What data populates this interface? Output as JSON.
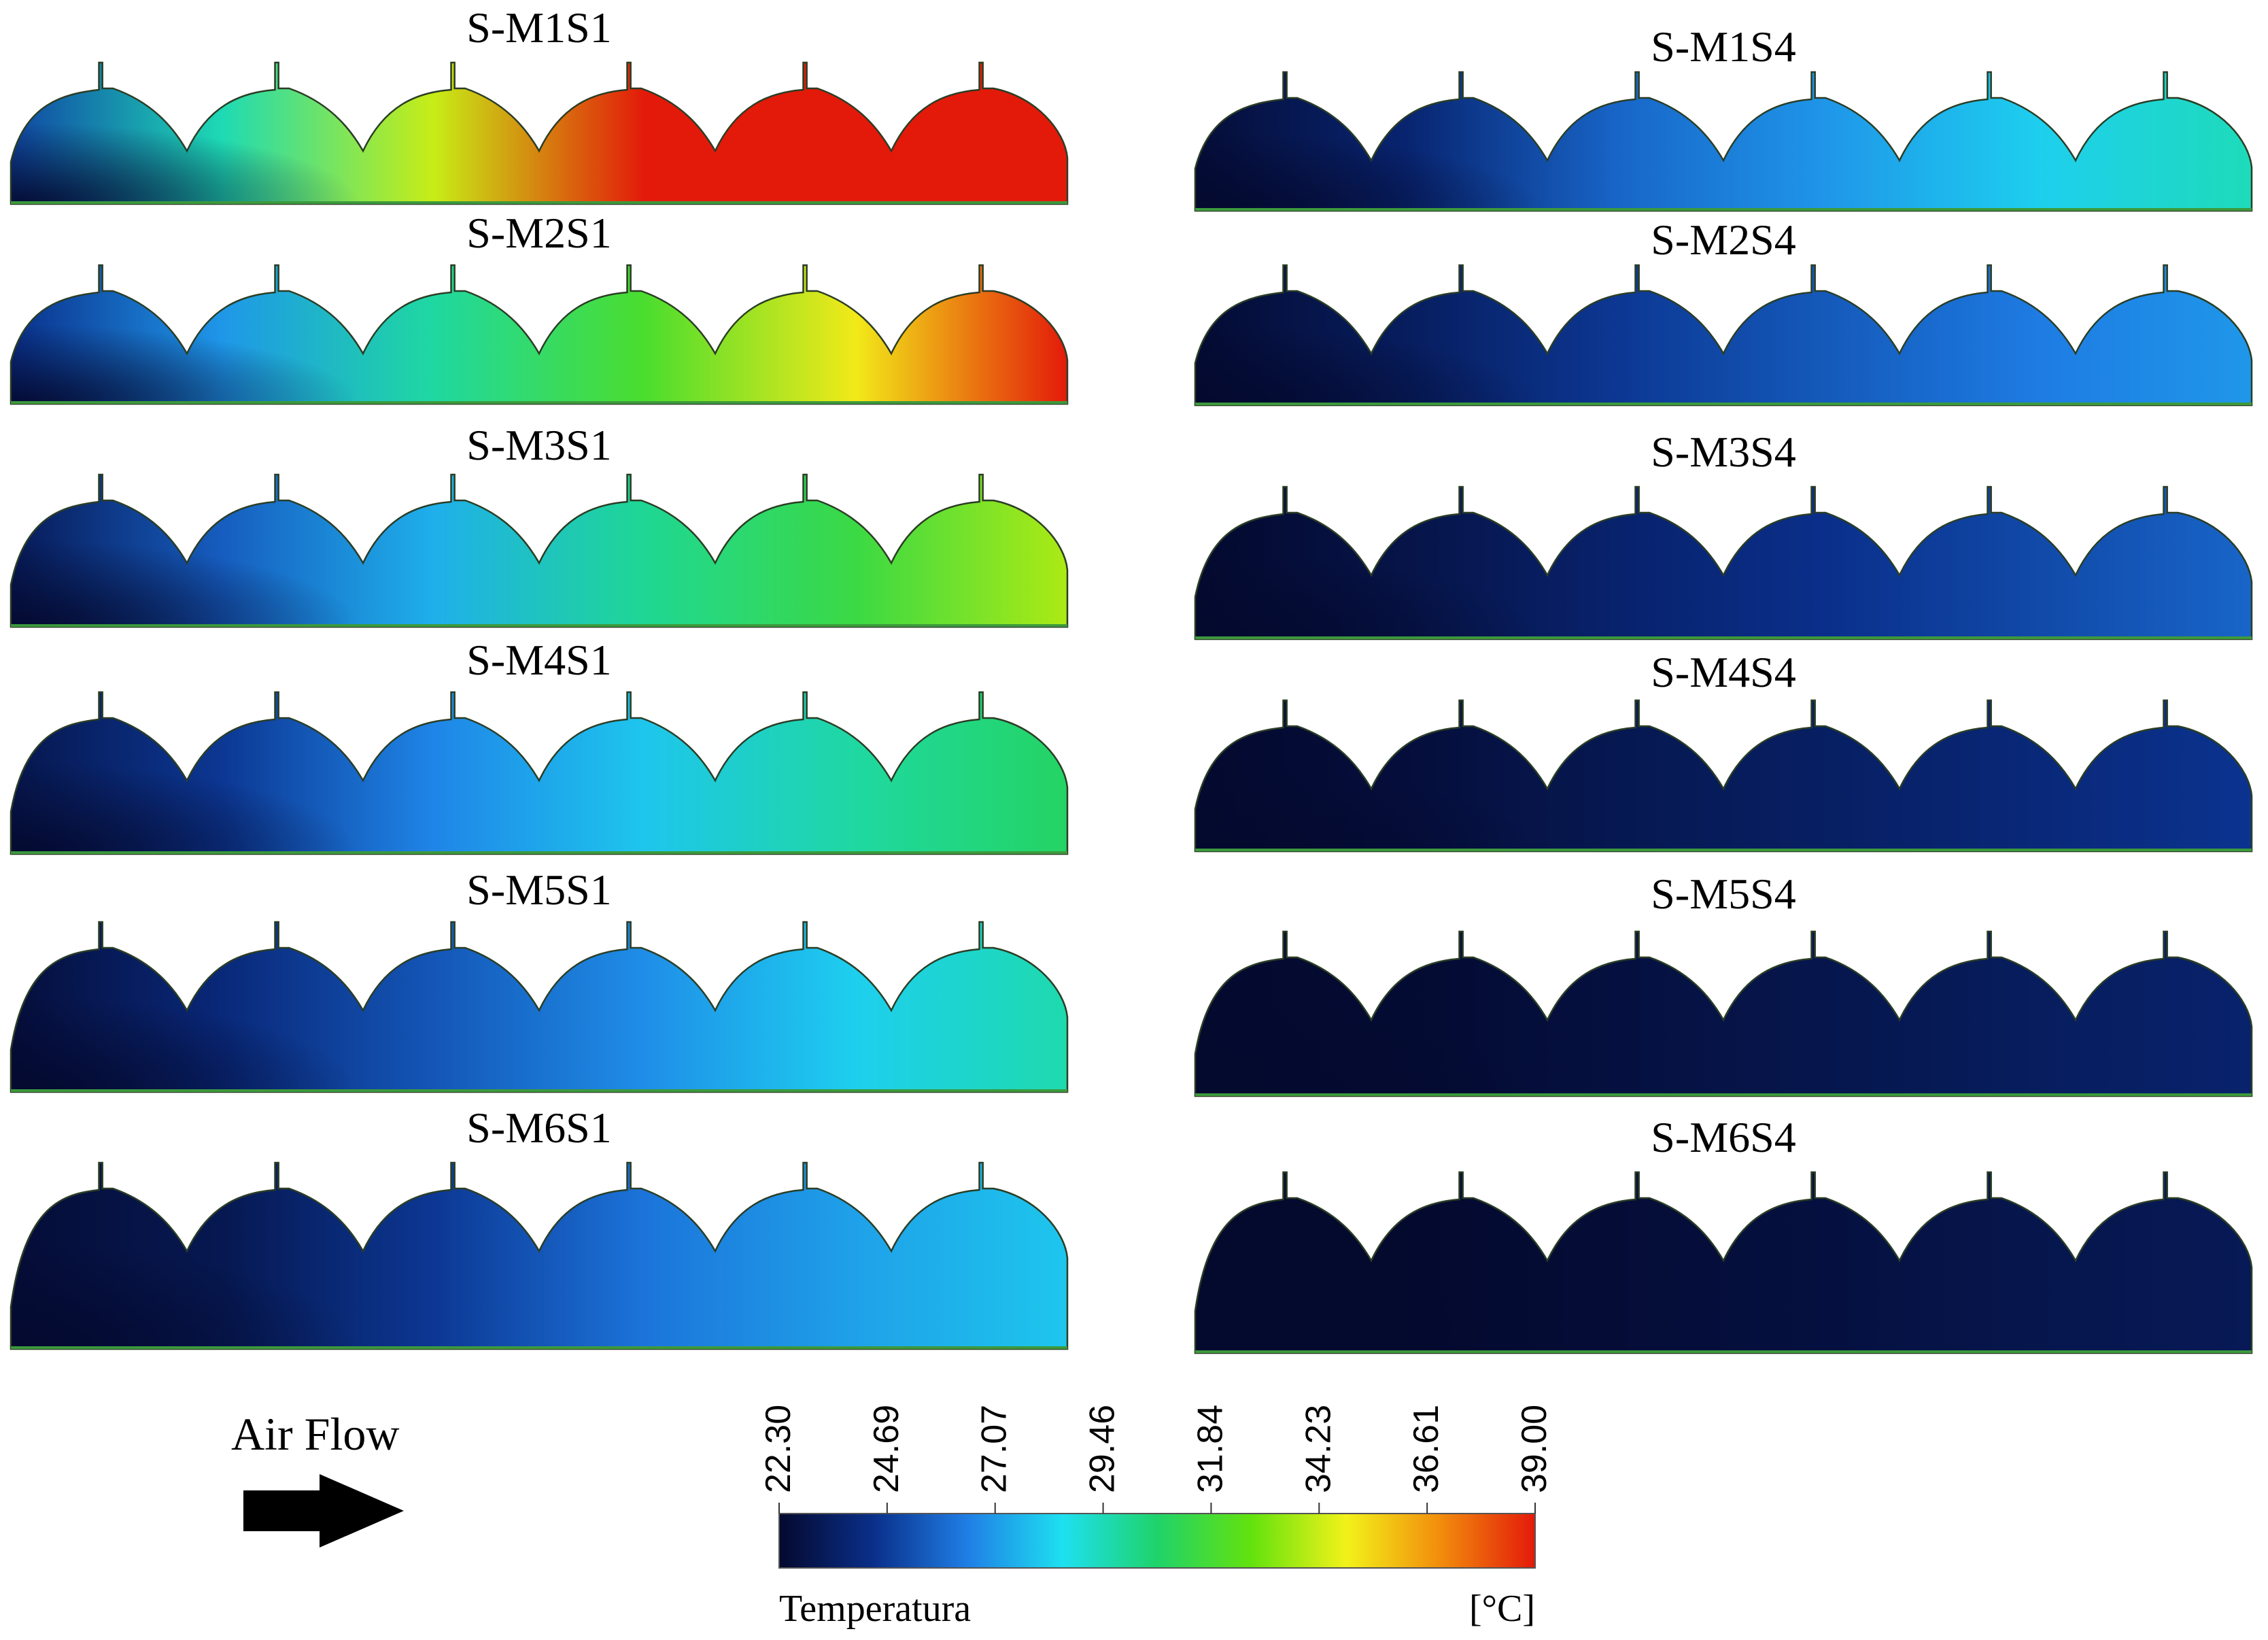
{
  "panels_left": [
    {
      "title": "S-M1S1",
      "temps": [
        25.0,
        29.5,
        34.2,
        39.0,
        39.0,
        39.0
      ]
    },
    {
      "title": "S-M2S1",
      "temps": [
        24.4,
        27.0,
        29.8,
        32.0,
        35.0,
        39.0
      ]
    },
    {
      "title": "S-M3S1",
      "temps": [
        23.2,
        25.6,
        27.5,
        30.0,
        31.5,
        33.8
      ]
    },
    {
      "title": "S-M4S1",
      "temps": [
        23.0,
        24.6,
        26.6,
        28.0,
        29.8,
        30.8
      ]
    },
    {
      "title": "S-M5S1",
      "temps": [
        22.6,
        24.0,
        25.4,
        26.8,
        28.2,
        29.6
      ]
    },
    {
      "title": "S-M6S1",
      "temps": [
        22.5,
        23.1,
        24.6,
        26.2,
        27.2,
        28.0
      ]
    }
  ],
  "panels_right": [
    {
      "title": "S-M1S4",
      "temps": [
        22.5,
        23.8,
        25.8,
        27.0,
        28.2,
        29.4
      ]
    },
    {
      "title": "S-M2S4",
      "temps": [
        22.4,
        23.4,
        24.6,
        25.5,
        26.4,
        27.0
      ]
    },
    {
      "title": "S-M3S4",
      "temps": [
        22.3,
        22.9,
        23.7,
        24.4,
        25.1,
        25.8
      ]
    },
    {
      "title": "S-M4S4",
      "temps": [
        22.3,
        22.6,
        23.1,
        23.5,
        24.0,
        24.5
      ]
    },
    {
      "title": "S-M5S4",
      "temps": [
        22.3,
        22.4,
        22.7,
        23.0,
        23.4,
        23.7
      ]
    },
    {
      "title": "S-M6S4",
      "temps": [
        22.3,
        22.3,
        22.5,
        22.7,
        23.0,
        23.2
      ]
    }
  ],
  "airflow": {
    "label": "Air Flow"
  },
  "legend": {
    "ticks": [
      "22.30",
      "24.69",
      "27.07",
      "29.46",
      "31.84",
      "34.23",
      "36.61",
      "39.00"
    ],
    "label": "Temperatura",
    "unit": "[°C]",
    "min": 22.3,
    "max": 39.0
  },
  "colors": {
    "colormap": [
      "#04092e",
      "#0a2f8a",
      "#1f7fe6",
      "#1ee0f0",
      "#1fd36a",
      "#63e20d",
      "#f2f21a",
      "#f28c0c",
      "#e31a0a"
    ],
    "outline": "#2b3d25",
    "floor_line": "#3c9a3c"
  }
}
